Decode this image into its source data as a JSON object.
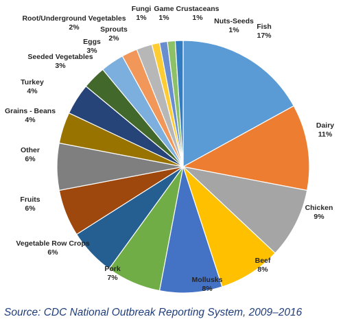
{
  "chart_data": {
    "type": "pie",
    "title": "",
    "slices": [
      {
        "label": "Fish",
        "value": 17,
        "percent_label": "17%",
        "color": "#5b9bd5"
      },
      {
        "label": "Dairy",
        "value": 11,
        "percent_label": "11%",
        "color": "#ed7d31"
      },
      {
        "label": "Chicken",
        "value": 9,
        "percent_label": "9%",
        "color": "#a5a5a5"
      },
      {
        "label": "Beef",
        "value": 8,
        "percent_label": "8%",
        "color": "#ffc000"
      },
      {
        "label": "Mollusks",
        "value": 8,
        "percent_label": "8%",
        "color": "#4472c4"
      },
      {
        "label": "Pork",
        "value": 7,
        "percent_label": "7%",
        "color": "#70ad47"
      },
      {
        "label": "Vegetable Row Crops",
        "value": 6,
        "percent_label": "6%",
        "color": "#255e91"
      },
      {
        "label": "Fruits",
        "value": 6,
        "percent_label": "6%",
        "color": "#9e480e"
      },
      {
        "label": "Other",
        "value": 6,
        "percent_label": "6%",
        "color": "#7f7f7f"
      },
      {
        "label": "Grains - Beans",
        "value": 4,
        "percent_label": "4%",
        "color": "#997300"
      },
      {
        "label": "Turkey",
        "value": 4,
        "percent_label": "4%",
        "color": "#264478"
      },
      {
        "label": "Seeded Vegetables",
        "value": 3,
        "percent_label": "3%",
        "color": "#43682b"
      },
      {
        "label": "Eggs",
        "value": 3,
        "percent_label": "3%",
        "color": "#7cafdd"
      },
      {
        "label": "Sprouts",
        "value": 2,
        "percent_label": "2%",
        "color": "#f1975a"
      },
      {
        "label": "Root/Underground Vegetables",
        "value": 2,
        "percent_label": "2%",
        "color": "#b7b7b7"
      },
      {
        "label": "Fungi",
        "value": 1,
        "percent_label": "1%",
        "color": "#ffcd33"
      },
      {
        "label": "Game",
        "value": 1,
        "percent_label": "1%",
        "color": "#698ed0"
      },
      {
        "label": "Crustaceans",
        "value": 1,
        "percent_label": "1%",
        "color": "#8cc168"
      },
      {
        "label": "Nuts-Seeds",
        "value": 1,
        "percent_label": "1%",
        "color": "#327dc2"
      }
    ]
  },
  "source_note": "Source: CDC National Outbreak Reporting System, 2009–2016"
}
